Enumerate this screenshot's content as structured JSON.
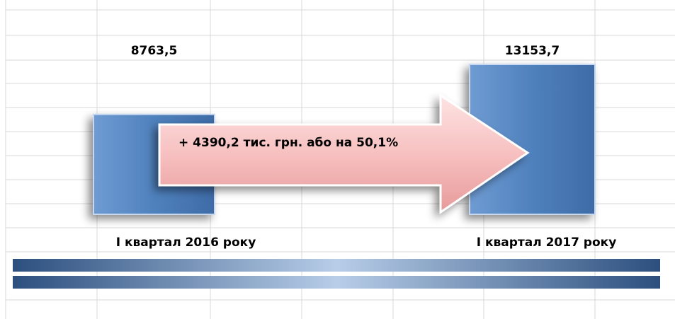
{
  "chart_data": {
    "type": "bar",
    "categories": [
      "І квартал 2016 року",
      "І квартал 2017 року"
    ],
    "values": [
      8763.5,
      13153.7
    ],
    "value_labels": [
      "8763,5",
      "13153,7"
    ],
    "color": "#4f81bd",
    "annotation": "+ 4390,2 тис. грн. або на 50,1%"
  }
}
